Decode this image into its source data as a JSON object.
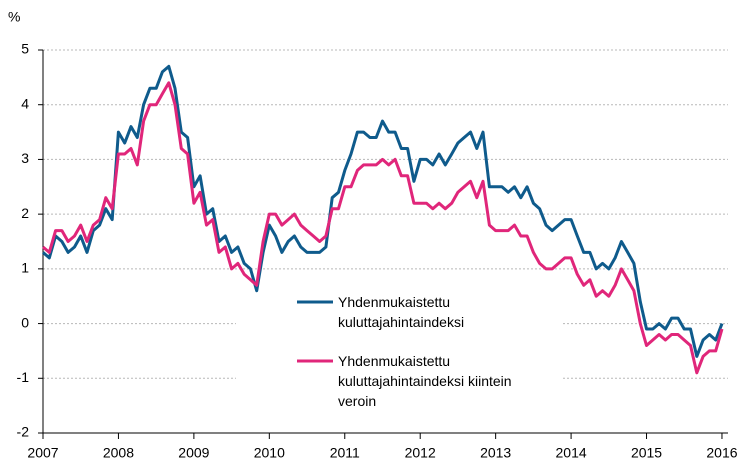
{
  "chart_data": {
    "type": "line",
    "ylabel": "%",
    "x": [
      2007,
      2007.083,
      2007.167,
      2007.25,
      2007.333,
      2007.417,
      2007.5,
      2007.583,
      2007.667,
      2007.75,
      2007.833,
      2007.917,
      2008,
      2008.083,
      2008.167,
      2008.25,
      2008.333,
      2008.417,
      2008.5,
      2008.583,
      2008.667,
      2008.75,
      2008.833,
      2008.917,
      2009,
      2009.083,
      2009.167,
      2009.25,
      2009.333,
      2009.417,
      2009.5,
      2009.583,
      2009.667,
      2009.75,
      2009.833,
      2009.917,
      2010,
      2010.083,
      2010.167,
      2010.25,
      2010.333,
      2010.417,
      2010.5,
      2010.583,
      2010.667,
      2010.75,
      2010.833,
      2010.917,
      2011,
      2011.083,
      2011.167,
      2011.25,
      2011.333,
      2011.417,
      2011.5,
      2011.583,
      2011.667,
      2011.75,
      2011.833,
      2011.917,
      2012,
      2012.083,
      2012.167,
      2012.25,
      2012.333,
      2012.417,
      2012.5,
      2012.583,
      2012.667,
      2012.75,
      2012.833,
      2012.917,
      2013,
      2013.083,
      2013.167,
      2013.25,
      2013.333,
      2013.417,
      2013.5,
      2013.583,
      2013.667,
      2013.75,
      2013.833,
      2013.917,
      2014,
      2014.083,
      2014.167,
      2014.25,
      2014.333,
      2014.417,
      2014.5,
      2014.583,
      2014.667,
      2014.75,
      2014.833,
      2014.917,
      2015,
      2015.083,
      2015.167,
      2015.25,
      2015.333,
      2015.417,
      2015.5,
      2015.583,
      2015.667,
      2015.75,
      2015.833,
      2015.917,
      2016
    ],
    "series": [
      {
        "name": "Yhdenmukaistettu kuluttajahintaindeksi",
        "color": "#0f5b8c",
        "values": [
          1.3,
          1.2,
          1.6,
          1.5,
          1.3,
          1.4,
          1.6,
          1.3,
          1.7,
          1.8,
          2.1,
          1.9,
          3.5,
          3.3,
          3.6,
          3.4,
          4.0,
          4.3,
          4.3,
          4.6,
          4.7,
          4.3,
          3.5,
          3.4,
          2.5,
          2.7,
          2.0,
          2.1,
          1.5,
          1.6,
          1.3,
          1.4,
          1.1,
          1.0,
          0.6,
          1.3,
          1.8,
          1.6,
          1.3,
          1.5,
          1.6,
          1.4,
          1.3,
          1.3,
          1.3,
          1.4,
          2.3,
          2.4,
          2.8,
          3.1,
          3.5,
          3.5,
          3.4,
          3.4,
          3.7,
          3.5,
          3.5,
          3.2,
          3.2,
          2.6,
          3.0,
          3.0,
          2.9,
          3.1,
          2.9,
          3.1,
          3.3,
          3.4,
          3.5,
          3.2,
          3.5,
          2.5,
          2.5,
          2.5,
          2.4,
          2.5,
          2.3,
          2.5,
          2.2,
          2.1,
          1.8,
          1.7,
          1.8,
          1.9,
          1.9,
          1.6,
          1.3,
          1.3,
          1.0,
          1.1,
          1.0,
          1.2,
          1.5,
          1.3,
          1.1,
          0.4,
          -0.1,
          -0.1,
          0.0,
          -0.1,
          0.1,
          0.1,
          -0.1,
          -0.1,
          -0.6,
          -0.3,
          -0.2,
          -0.3,
          0.0
        ]
      },
      {
        "name": "Yhdenmukaistettu kuluttajahintaindeksi kiintein veroin",
        "color": "#e0267a",
        "values": [
          1.4,
          1.3,
          1.7,
          1.7,
          1.5,
          1.6,
          1.8,
          1.5,
          1.8,
          1.9,
          2.3,
          2.1,
          3.1,
          3.1,
          3.2,
          2.9,
          3.7,
          4.0,
          4.0,
          4.2,
          4.4,
          4.0,
          3.2,
          3.1,
          2.2,
          2.4,
          1.8,
          1.9,
          1.3,
          1.4,
          1.0,
          1.1,
          0.9,
          0.8,
          0.7,
          1.5,
          2.0,
          2.0,
          1.8,
          1.9,
          2.0,
          1.8,
          1.7,
          1.6,
          1.5,
          1.6,
          2.1,
          2.1,
          2.5,
          2.5,
          2.8,
          2.9,
          2.9,
          2.9,
          3.0,
          2.9,
          3.0,
          2.7,
          2.7,
          2.2,
          2.2,
          2.2,
          2.1,
          2.2,
          2.1,
          2.2,
          2.4,
          2.5,
          2.6,
          2.3,
          2.6,
          1.8,
          1.7,
          1.7,
          1.7,
          1.8,
          1.6,
          1.6,
          1.3,
          1.1,
          1.0,
          1.0,
          1.1,
          1.2,
          1.2,
          0.9,
          0.7,
          0.8,
          0.5,
          0.6,
          0.5,
          0.7,
          1.0,
          0.8,
          0.6,
          0.0,
          -0.4,
          -0.3,
          -0.2,
          -0.3,
          -0.2,
          -0.2,
          -0.3,
          -0.4,
          -0.9,
          -0.6,
          -0.5,
          -0.5,
          -0.1
        ]
      }
    ],
    "xlim": [
      2007,
      2016.08
    ],
    "xticks": [
      2007,
      2008,
      2009,
      2010,
      2011,
      2012,
      2013,
      2014,
      2015,
      2016
    ],
    "ylim": [
      -2,
      5
    ],
    "yticks": [
      -2,
      -1,
      0,
      1,
      2,
      3,
      4,
      5
    ],
    "grid": true
  }
}
